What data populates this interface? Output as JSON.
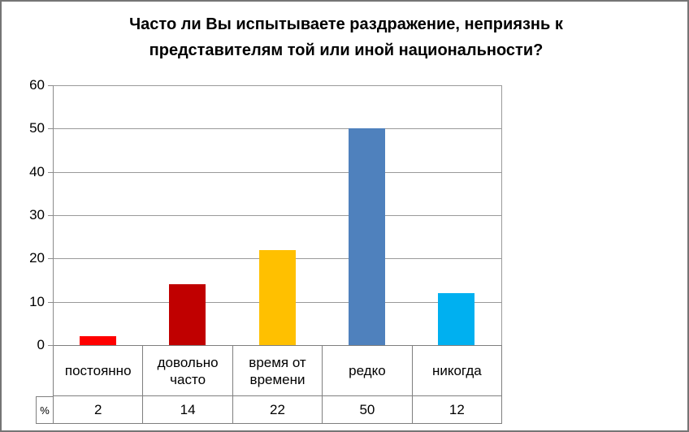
{
  "window": {
    "background_color": "#FFFFFF",
    "border_color": "#757575"
  },
  "chart_data": {
    "type": "bar",
    "title": "Часто ли Вы испытываете раздражение, неприязнь к\nпредставителям той или иной национальности?",
    "categories": [
      "постоянно",
      "довольно часто",
      "время от времени",
      "редко",
      "никогда"
    ],
    "values": [
      2,
      14,
      22,
      50,
      12
    ],
    "unit": "%",
    "colors": [
      "#FF0000",
      "#C00000",
      "#FFC000",
      "#4F81BD",
      "#00B0F0"
    ],
    "ylim": [
      0,
      60
    ],
    "yticks": [
      0,
      10,
      20,
      30,
      40,
      50,
      60
    ],
    "grid": true,
    "gridline_color": "#9A9A9A",
    "legend_position": "right",
    "legend_entries": [
      {
        "label": "постоянно",
        "color": "#FF0000"
      },
      {
        "label": "довольно часто",
        "color": "#C00000"
      },
      {
        "label": "время от времени",
        "color": "#FFC000"
      },
      {
        "label": "редко",
        "color": "#4F81BD"
      },
      {
        "label": "никогда",
        "color": "#00B0F0"
      }
    ],
    "data_table": {
      "row_label": "%",
      "header_cells": [
        "постоянно",
        "довольно часто",
        "время от времени",
        "редко",
        "никогда"
      ],
      "value_cells": [
        "2",
        "14",
        "22",
        "50",
        "12"
      ]
    }
  }
}
